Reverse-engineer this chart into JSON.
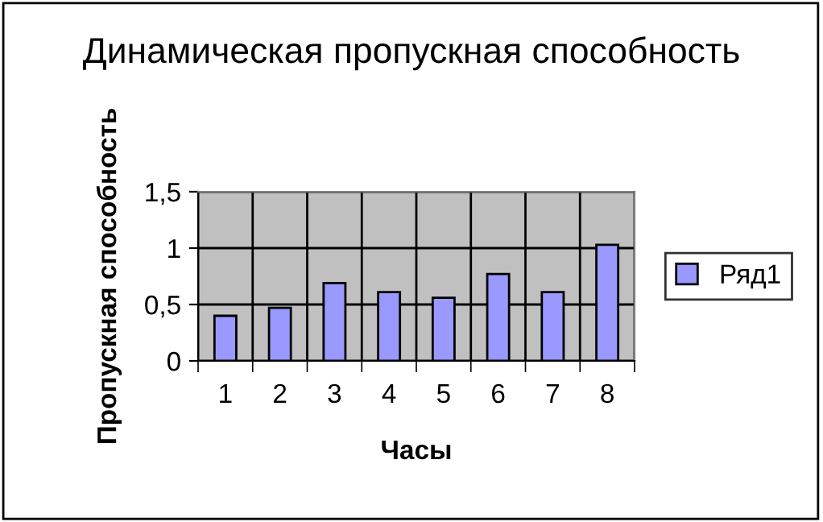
{
  "chart_data": {
    "type": "bar",
    "title": "Динамическая пропускная способность",
    "xlabel": "Часы",
    "ylabel": "Пропускная способность",
    "categories": [
      "1",
      "2",
      "3",
      "4",
      "5",
      "6",
      "7",
      "8"
    ],
    "series": [
      {
        "name": "Ряд1",
        "color": "#9999ff",
        "values": [
          0.4,
          0.47,
          0.69,
          0.61,
          0.56,
          0.77,
          0.61,
          1.03
        ]
      }
    ],
    "ylim": [
      0,
      1.5
    ],
    "yticks": [
      0,
      {
        "value": 0.5,
        "label": "0,5"
      },
      1,
      {
        "value": 1.5,
        "label": "1,5"
      }
    ],
    "grid": true,
    "legend": "right"
  }
}
